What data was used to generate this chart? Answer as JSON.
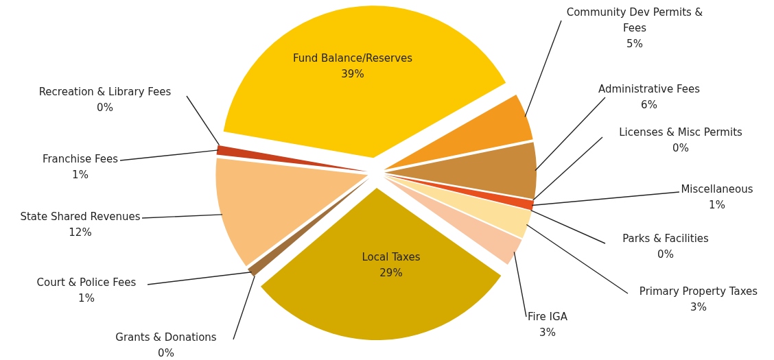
{
  "chart_data": {
    "type": "pie",
    "categories": [
      "Fund Balance/Reserves",
      "Community Dev Permits & Fees",
      "Administrative Fees",
      "Licenses & Misc Permits",
      "Miscellaneous",
      "Parks & Facilities",
      "Primary Property Taxes",
      "Fire IGA",
      "Local Taxes",
      "Grants & Donations",
      "Court & Police Fees",
      "State Shared Revenues",
      "Franchise Fees",
      "Recreation & Library Fees"
    ],
    "values": [
      39,
      5,
      6,
      0,
      1,
      0,
      3,
      3,
      29,
      0,
      1,
      12,
      1,
      0
    ],
    "value_labels": [
      "39%",
      "5%",
      "6%",
      "0%",
      "1%",
      "0%",
      "3%",
      "3%",
      "29%",
      "0%",
      "1%",
      "12%",
      "1%",
      "0%"
    ],
    "colors": [
      "#fcc800",
      "#f39a1e",
      "#c98a3c",
      "#f07f1a",
      "#e8501e",
      "#b07080",
      "#fde09a",
      "#f9c4a0",
      "#d4a900",
      "#d0a0a0",
      "#a0703c",
      "#f9be78",
      "#c8401c",
      "#a05070"
    ]
  }
}
